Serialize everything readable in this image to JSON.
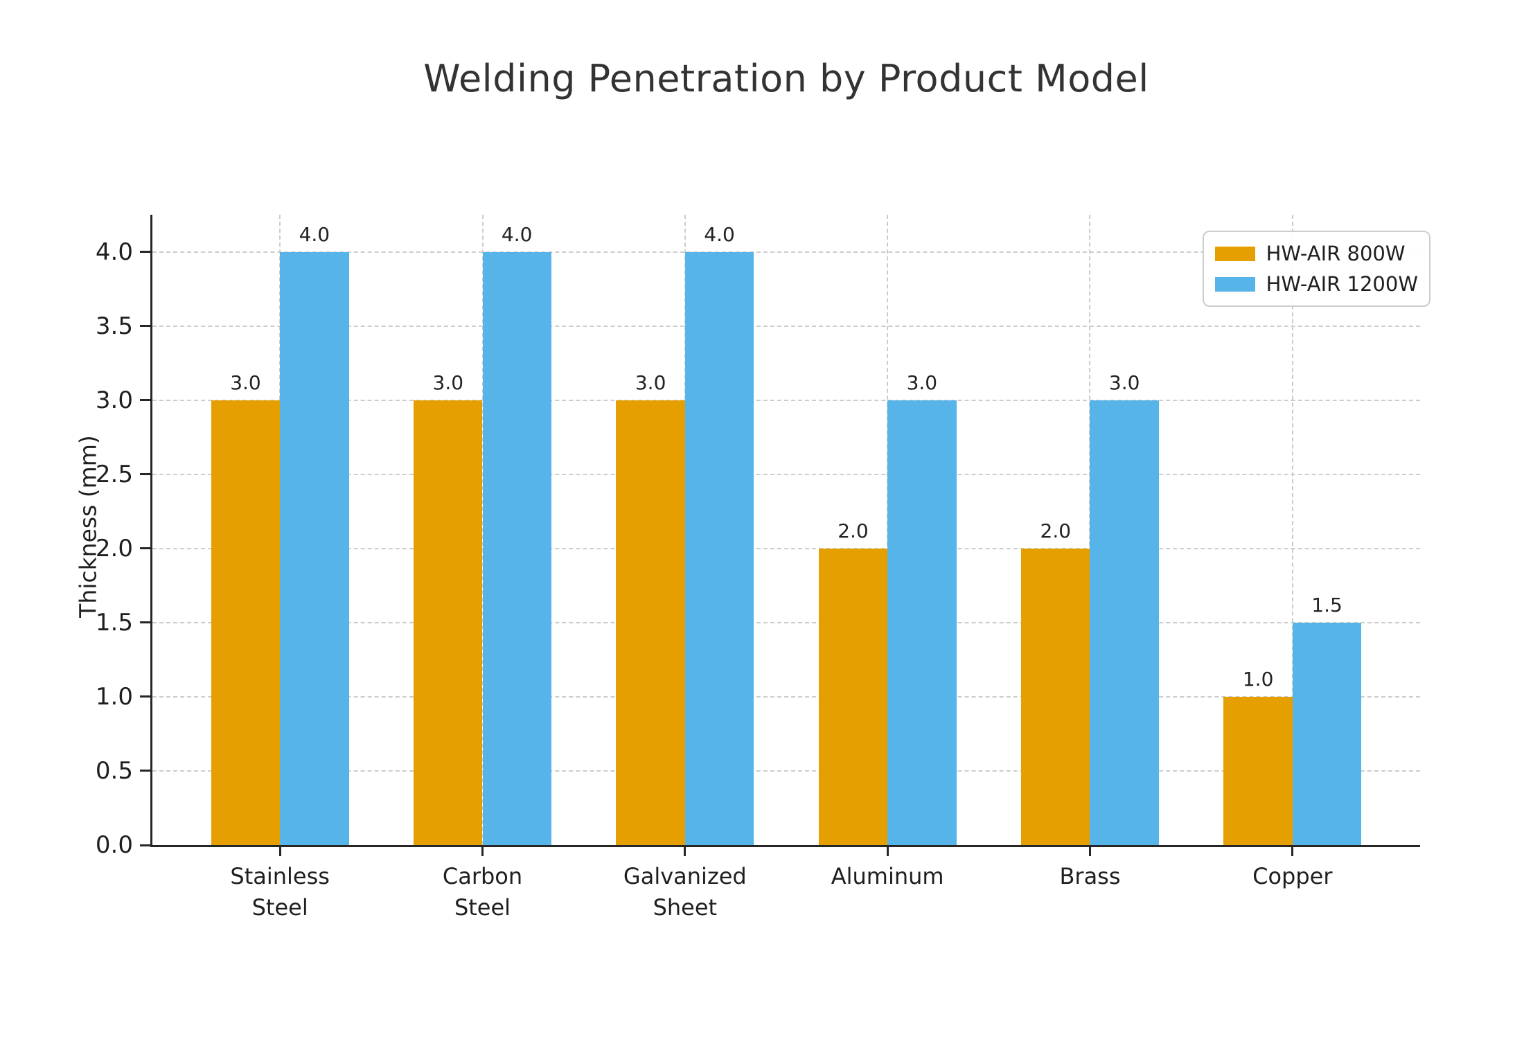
{
  "title": "Welding Penetration by Product Model",
  "chart_data": {
    "type": "bar",
    "title": "Welding Penetration by Product Model",
    "categories": [
      "Stainless\nSteel",
      "Carbon\nSteel",
      "Galvanized\nSheet",
      "Aluminum",
      "Brass",
      "Copper"
    ],
    "series": [
      {
        "name": "HW-AIR 800W",
        "color": "#E69F00",
        "values": [
          3.0,
          3.0,
          3.0,
          2.0,
          2.0,
          1.0
        ]
      },
      {
        "name": "HW-AIR 1200W",
        "color": "#56B4E9",
        "values": [
          4.0,
          4.0,
          4.0,
          3.0,
          3.0,
          1.5
        ]
      }
    ],
    "xlabel": "",
    "ylabel": "Thickness (mm)",
    "ylim": [
      0,
      4.25
    ],
    "yticks": [
      0.0,
      0.5,
      1.0,
      1.5,
      2.0,
      2.5,
      3.0,
      3.5,
      4.0
    ],
    "grid": true,
    "grid_style": "dashed",
    "legend_position": "upper right",
    "bar_labels": true,
    "value_format_decimals": 1
  },
  "colors": {
    "series1": "#E69F00",
    "series2": "#56B4E9",
    "grid": "#cccccc",
    "axis": "#262626"
  }
}
